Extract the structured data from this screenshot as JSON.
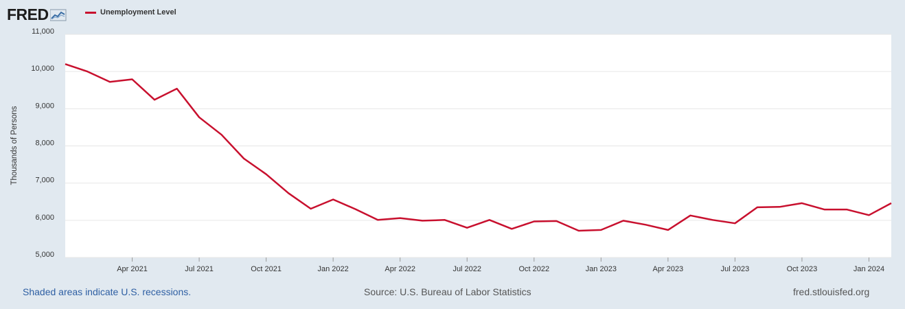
{
  "header": {
    "logo_text": "FRED",
    "legend_label": "Unemployment Level"
  },
  "footer": {
    "note": "Shaded areas indicate U.S. recessions.",
    "source": "Source: U.S. Bureau of Labor Statistics",
    "site": "fred.stlouisfed.org"
  },
  "colors": {
    "line": "#c8102e",
    "background": "#e1e9f0",
    "plot_background": "#ffffff"
  },
  "chart_data": {
    "type": "line",
    "ylabel": "Thousands of Persons",
    "xlabel": "",
    "ylim": [
      5000,
      11000
    ],
    "xlim": [
      "2021-01",
      "2024-02"
    ],
    "yticks": [
      5000,
      6000,
      7000,
      8000,
      9000,
      10000,
      11000
    ],
    "ytick_labels": [
      "5,000",
      "6,000",
      "7,000",
      "8,000",
      "9,000",
      "10,000",
      "11,000"
    ],
    "xticks": [
      "2021-04",
      "2021-07",
      "2021-10",
      "2022-01",
      "2022-04",
      "2022-07",
      "2022-10",
      "2023-01",
      "2023-04",
      "2023-07",
      "2023-10",
      "2024-01"
    ],
    "xtick_labels": [
      "Apr 2021",
      "Jul 2021",
      "Oct 2021",
      "Jan 2022",
      "Apr 2022",
      "Jul 2022",
      "Oct 2022",
      "Jan 2023",
      "Apr 2023",
      "Jul 2023",
      "Oct 2023",
      "Jan 2024"
    ],
    "grid": true,
    "series": [
      {
        "name": "Unemployment Level",
        "x": [
          "2021-01",
          "2021-02",
          "2021-03",
          "2021-04",
          "2021-05",
          "2021-06",
          "2021-07",
          "2021-08",
          "2021-09",
          "2021-10",
          "2021-11",
          "2021-12",
          "2022-01",
          "2022-02",
          "2022-03",
          "2022-04",
          "2022-05",
          "2022-06",
          "2022-07",
          "2022-08",
          "2022-09",
          "2022-10",
          "2022-11",
          "2022-12",
          "2023-01",
          "2023-02",
          "2023-03",
          "2023-04",
          "2023-05",
          "2023-06",
          "2023-07",
          "2023-08",
          "2023-09",
          "2023-10",
          "2023-11",
          "2023-12",
          "2024-01",
          "2024-02"
        ],
        "values": [
          10200,
          10000,
          9720,
          9790,
          9240,
          9540,
          8770,
          8300,
          7660,
          7240,
          6730,
          6310,
          6560,
          6300,
          6010,
          6060,
          5990,
          6010,
          5800,
          6010,
          5770,
          5970,
          5980,
          5720,
          5740,
          5990,
          5880,
          5740,
          6130,
          6010,
          5920,
          6350,
          6360,
          6460,
          6290,
          6290,
          6140,
          6460
        ]
      }
    ]
  }
}
